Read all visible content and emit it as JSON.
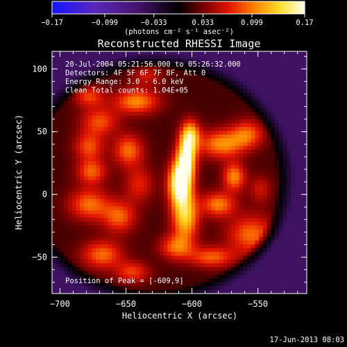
{
  "chart_data": {
    "type": "heatmap",
    "title": "Reconstructed RHESSI Image",
    "xlabel": "Heliocentric X (arcsec)",
    "ylabel": "Heliocentric Y (arcsec)",
    "xlim": [
      -706,
      -513
    ],
    "ylim": [
      -79,
      114
    ],
    "x_ticks": [
      -700,
      -650,
      -600,
      -550
    ],
    "x_tick_labels": [
      "−700",
      "−650",
      "−600",
      "−550"
    ],
    "y_ticks": [
      -50,
      0,
      50,
      100
    ],
    "y_tick_labels": [
      "−50",
      "0",
      "50",
      "100"
    ],
    "colorbar": {
      "range": [
        -0.17,
        0.17
      ],
      "ticks": [
        -0.17,
        -0.099,
        -0.033,
        0.033,
        0.099,
        0.17
      ],
      "tick_labels": [
        "−0.17",
        "−0.099",
        "−0.033",
        "0.033",
        "0.099",
        "0.17"
      ],
      "unit_label": "(photons cm⁻² s⁻¹ asec⁻²)",
      "colormap": "red-temperature with blue negative side"
    },
    "annotations": [
      "20-Jul-2004 05:21:56.000 to 05:26:32.000",
      "Detectors: 4F 5F 6F 7F 8F, Att 0",
      "Energy Range: 3.0 - 6.0 keV",
      "Clean    Total counts: 1.04E+05"
    ],
    "peak_label": "Position of Peak = [-609,9]",
    "peak": {
      "x": -609,
      "y": 9,
      "value": 0.17
    },
    "components": [
      {
        "x": -609,
        "y": 9,
        "value": 0.17,
        "sx": 6,
        "sy": 12
      },
      {
        "x": -604,
        "y": 30,
        "value": 0.14,
        "sx": 5,
        "sy": 12
      },
      {
        "x": -601,
        "y": 48,
        "value": 0.09,
        "sx": 5,
        "sy": 8
      },
      {
        "x": -605,
        "y": -18,
        "value": 0.11,
        "sx": 7,
        "sy": 13
      },
      {
        "x": -612,
        "y": -42,
        "value": 0.07,
        "sx": 9,
        "sy": 7
      },
      {
        "x": -578,
        "y": 40,
        "value": 0.085,
        "sx": 12,
        "sy": 8
      },
      {
        "x": -558,
        "y": 48,
        "value": 0.07,
        "sx": 9,
        "sy": 8
      },
      {
        "x": -568,
        "y": 14,
        "value": 0.085,
        "sx": 6,
        "sy": 8
      },
      {
        "x": -580,
        "y": -8,
        "value": 0.08,
        "sx": 9,
        "sy": 7
      },
      {
        "x": -555,
        "y": -32,
        "value": 0.075,
        "sx": 13,
        "sy": 11
      },
      {
        "x": -585,
        "y": -50,
        "value": 0.07,
        "sx": 12,
        "sy": 6
      },
      {
        "x": -548,
        "y": 4,
        "value": 0.04,
        "sx": 6,
        "sy": 8
      },
      {
        "x": -642,
        "y": 74,
        "value": 0.085,
        "sx": 12,
        "sy": 7
      },
      {
        "x": -678,
        "y": 78,
        "value": 0.06,
        "sx": 8,
        "sy": 6
      },
      {
        "x": -670,
        "y": 58,
        "value": 0.065,
        "sx": 10,
        "sy": 8
      },
      {
        "x": -678,
        "y": 38,
        "value": 0.065,
        "sx": 8,
        "sy": 8
      },
      {
        "x": -648,
        "y": 35,
        "value": 0.075,
        "sx": 8,
        "sy": 9
      },
      {
        "x": -676,
        "y": 18,
        "value": 0.07,
        "sx": 8,
        "sy": 7
      },
      {
        "x": -678,
        "y": -8,
        "value": 0.075,
        "sx": 11,
        "sy": 9
      },
      {
        "x": -655,
        "y": -18,
        "value": 0.07,
        "sx": 9,
        "sy": 9
      },
      {
        "x": -668,
        "y": -48,
        "value": 0.075,
        "sx": 11,
        "sy": 8
      },
      {
        "x": -645,
        "y": -62,
        "value": 0.06,
        "sx": 9,
        "sy": 6
      },
      {
        "x": -640,
        "y": 8,
        "value": 0.05,
        "sx": 8,
        "sy": 10
      },
      {
        "x": -634,
        "y": 95,
        "value": 0.04,
        "sx": 9,
        "sy": 6
      }
    ],
    "baseline": 0.02,
    "disk_limb": {
      "cx": -628,
      "cy": 12,
      "r": 92,
      "outside_value": -0.05
    }
  },
  "footer": {
    "timestamp": "17-Jun-2013 08:03"
  }
}
